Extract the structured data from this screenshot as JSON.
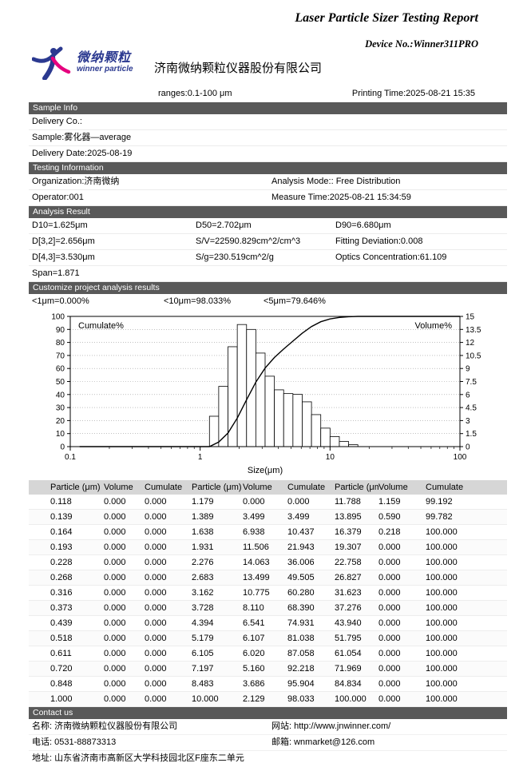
{
  "header": {
    "title": "Laser Particle Sizer Testing Report",
    "device_no": "Device No.:Winner311PRO",
    "logo_cn": "微纳颗粒",
    "logo_en": "winner particle",
    "company": "济南微纳颗粒仪器股份有限公司",
    "ranges": "ranges:0.1-100 μm",
    "printing_time": "Printing Time:2025-08-21 15:35"
  },
  "sample_info": {
    "section_title": "Sample Info",
    "delivery_co": "Delivery Co.:",
    "sample": "Sample:雾化器—average",
    "delivery_date": "Delivery Date:2025-08-19"
  },
  "testing_information": {
    "section_title": "Testing Information",
    "organization": "Organization:济南微纳",
    "analysis_mode": "Analysis Mode:: Free Distribution",
    "operator": "Operator:001",
    "measure_time": "Measure Time:2025-08-21 15:34:59"
  },
  "analysis_result": {
    "section_title": "Analysis Result",
    "d10": "D10=1.625μm",
    "d50": "D50=2.702μm",
    "d90": "D90=6.680μm",
    "d32": "D[3,2]=2.656μm",
    "sv": "S/V=22590.829cm^2/cm^3",
    "fitting_deviation": "Fitting Deviation:0.008",
    "d43": "D[4,3]=3.530μm",
    "sg": "S/g=230.519cm^2/g",
    "optics_concentration": "Optics Concentration:61.109",
    "span": "Span=1.871"
  },
  "customize": {
    "section_title": "Customize project analysis results",
    "lt1": "<1μm=0.000%",
    "lt10": "<10μm=98.033%",
    "lt5": "<5μm=79.646%"
  },
  "chart_data": {
    "type": "bar",
    "subtype": "log-histogram with cumulative line",
    "xlabel": "Size(μm)",
    "left_label": "Cumulate%",
    "right_label": "Volume%",
    "x_scale": "log",
    "x_min": 0.1,
    "x_max": 100,
    "x_ticks": [
      "0.1",
      "1",
      "10",
      "100"
    ],
    "left_max": 100,
    "left_tick_step": 10,
    "right_max": 15,
    "right_tick_step": 1.5,
    "grid": "dotted-horizontal",
    "sizes": [
      0.118,
      0.139,
      0.164,
      0.193,
      0.228,
      0.268,
      0.316,
      0.373,
      0.439,
      0.518,
      0.611,
      0.72,
      0.848,
      1.0,
      1.179,
      1.389,
      1.638,
      1.931,
      2.276,
      2.683,
      3.162,
      3.728,
      4.394,
      5.179,
      6.105,
      7.197,
      8.483,
      10.0,
      11.788,
      13.895,
      16.379,
      19.307,
      22.758,
      26.827,
      31.623,
      37.276,
      43.94,
      51.795,
      61.054,
      71.969,
      84.834,
      100.0
    ],
    "volume": [
      0,
      0,
      0,
      0,
      0,
      0,
      0,
      0,
      0,
      0,
      0,
      0,
      0,
      0,
      0,
      3.499,
      6.938,
      11.506,
      14.063,
      13.499,
      10.775,
      8.11,
      6.541,
      6.107,
      6.02,
      5.16,
      3.686,
      2.129,
      1.159,
      0.59,
      0.218,
      0,
      0,
      0,
      0,
      0,
      0,
      0,
      0,
      0,
      0,
      0
    ],
    "cumulate": [
      0,
      0,
      0,
      0,
      0,
      0,
      0,
      0,
      0,
      0,
      0,
      0,
      0,
      0,
      0,
      3.499,
      10.437,
      21.943,
      36.006,
      49.505,
      60.28,
      68.39,
      74.931,
      81.038,
      87.058,
      92.218,
      95.904,
      98.033,
      99.192,
      99.782,
      100,
      100,
      100,
      100,
      100,
      100,
      100,
      100,
      100,
      100,
      100,
      100
    ]
  },
  "table": {
    "headers": [
      "Particle (μm)",
      "Volume",
      "Cumulate",
      "Particle (μm)",
      "Volume",
      "Cumulate",
      "Particle (μm)",
      "Volume",
      "Cumulate"
    ],
    "rows": [
      [
        "0.118",
        "0.000",
        "0.000",
        "1.179",
        "0.000",
        "0.000",
        "11.788",
        "1.159",
        "99.192"
      ],
      [
        "0.139",
        "0.000",
        "0.000",
        "1.389",
        "3.499",
        "3.499",
        "13.895",
        "0.590",
        "99.782"
      ],
      [
        "0.164",
        "0.000",
        "0.000",
        "1.638",
        "6.938",
        "10.437",
        "16.379",
        "0.218",
        "100.000"
      ],
      [
        "0.193",
        "0.000",
        "0.000",
        "1.931",
        "11.506",
        "21.943",
        "19.307",
        "0.000",
        "100.000"
      ],
      [
        "0.228",
        "0.000",
        "0.000",
        "2.276",
        "14.063",
        "36.006",
        "22.758",
        "0.000",
        "100.000"
      ],
      [
        "0.268",
        "0.000",
        "0.000",
        "2.683",
        "13.499",
        "49.505",
        "26.827",
        "0.000",
        "100.000"
      ],
      [
        "0.316",
        "0.000",
        "0.000",
        "3.162",
        "10.775",
        "60.280",
        "31.623",
        "0.000",
        "100.000"
      ],
      [
        "0.373",
        "0.000",
        "0.000",
        "3.728",
        "8.110",
        "68.390",
        "37.276",
        "0.000",
        "100.000"
      ],
      [
        "0.439",
        "0.000",
        "0.000",
        "4.394",
        "6.541",
        "74.931",
        "43.940",
        "0.000",
        "100.000"
      ],
      [
        "0.518",
        "0.000",
        "0.000",
        "5.179",
        "6.107",
        "81.038",
        "51.795",
        "0.000",
        "100.000"
      ],
      [
        "0.611",
        "0.000",
        "0.000",
        "6.105",
        "6.020",
        "87.058",
        "61.054",
        "0.000",
        "100.000"
      ],
      [
        "0.720",
        "0.000",
        "0.000",
        "7.197",
        "5.160",
        "92.218",
        "71.969",
        "0.000",
        "100.000"
      ],
      [
        "0.848",
        "0.000",
        "0.000",
        "8.483",
        "3.686",
        "95.904",
        "84.834",
        "0.000",
        "100.000"
      ],
      [
        "1.000",
        "0.000",
        "0.000",
        "10.000",
        "2.129",
        "98.033",
        "100.000",
        "0.000",
        "100.000"
      ]
    ]
  },
  "contact": {
    "section_title": "Contact us",
    "name": "名称: 济南微纳颗粒仪器股份有限公司",
    "website": "网站: http://www.jnwinner.com/",
    "phone": "电话: 0531-88873313",
    "email": "邮箱: wnmarket@126.com",
    "address": "地址: 山东省济南市高新区大学科技园北区F座东二单元"
  }
}
